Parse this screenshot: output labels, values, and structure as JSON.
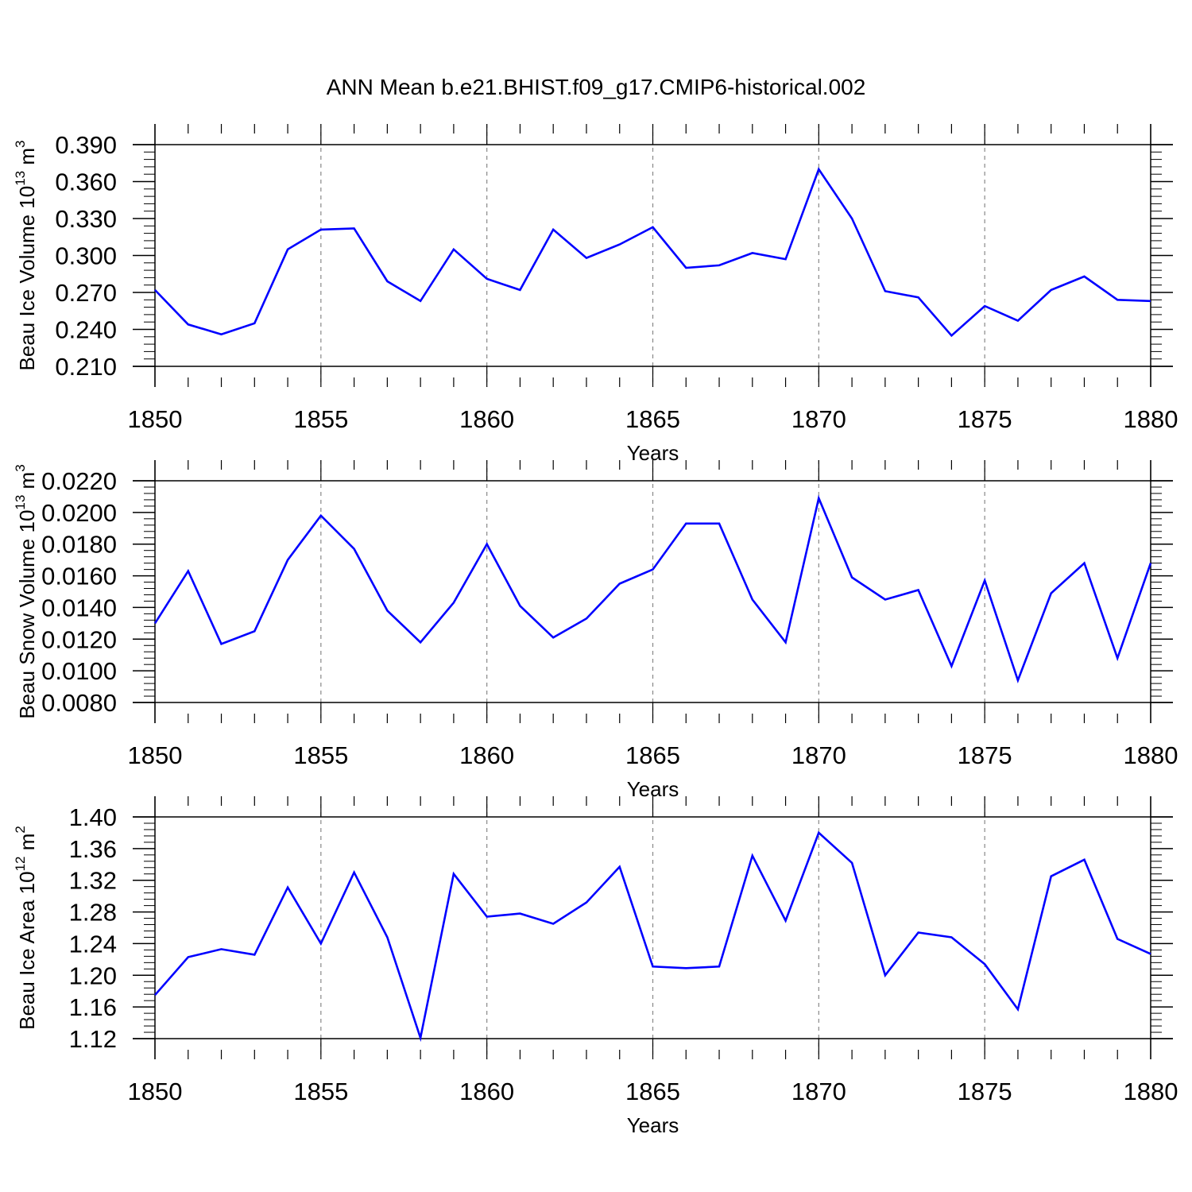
{
  "figure": {
    "title": "ANN Mean b.e21.BHIST.f09_g17.CMIP6-historical.002",
    "line_color": "#0000ff",
    "grid_color": "#888888"
  },
  "chart_data": [
    {
      "type": "line",
      "xlabel": "Years",
      "ylabel": {
        "text": "Beau Ice Volume 10",
        "sup": "13",
        "unit": " m",
        "unit_sup": "3"
      },
      "xlim": [
        1850,
        1880
      ],
      "ylim": [
        0.21,
        0.39
      ],
      "xticks": [
        "1850",
        "1855",
        "1860",
        "1865",
        "1870",
        "1875",
        "1880"
      ],
      "yticks": [
        "0.210",
        "0.240",
        "0.270",
        "0.300",
        "0.330",
        "0.360",
        "0.390"
      ],
      "x": [
        1850,
        1851,
        1852,
        1853,
        1854,
        1855,
        1856,
        1857,
        1858,
        1859,
        1860,
        1861,
        1862,
        1863,
        1864,
        1865,
        1866,
        1867,
        1868,
        1869,
        1870,
        1871,
        1872,
        1873,
        1874,
        1875,
        1876,
        1877,
        1878,
        1879,
        1880
      ],
      "values": [
        0.272,
        0.244,
        0.236,
        0.245,
        0.305,
        0.321,
        0.322,
        0.279,
        0.263,
        0.305,
        0.281,
        0.272,
        0.321,
        0.298,
        0.309,
        0.323,
        0.29,
        0.292,
        0.302,
        0.297,
        0.37,
        0.33,
        0.271,
        0.266,
        0.235,
        0.259,
        0.247,
        0.272,
        0.283,
        0.264,
        0.263
      ]
    },
    {
      "type": "line",
      "xlabel": "Years",
      "ylabel": {
        "text": "Beau Snow Volume 10",
        "sup": "13",
        "unit": " m",
        "unit_sup": "3"
      },
      "xlim": [
        1850,
        1880
      ],
      "ylim": [
        0.008,
        0.022
      ],
      "xticks": [
        "1850",
        "1855",
        "1860",
        "1865",
        "1870",
        "1875",
        "1880"
      ],
      "yticks": [
        "0.0080",
        "0.0100",
        "0.0120",
        "0.0140",
        "0.0160",
        "0.0180",
        "0.0200",
        "0.0220"
      ],
      "x": [
        1850,
        1851,
        1852,
        1853,
        1854,
        1855,
        1856,
        1857,
        1858,
        1859,
        1860,
        1861,
        1862,
        1863,
        1864,
        1865,
        1866,
        1867,
        1868,
        1869,
        1870,
        1871,
        1872,
        1873,
        1874,
        1875,
        1876,
        1877,
        1878,
        1879,
        1880
      ],
      "values": [
        0.013,
        0.0163,
        0.0117,
        0.0125,
        0.017,
        0.0198,
        0.0177,
        0.0138,
        0.0118,
        0.0143,
        0.018,
        0.0141,
        0.0121,
        0.0133,
        0.0155,
        0.0164,
        0.0193,
        0.0193,
        0.0145,
        0.0118,
        0.0209,
        0.0159,
        0.0145,
        0.0151,
        0.0103,
        0.0157,
        0.0094,
        0.0149,
        0.0168,
        0.0108,
        0.0168
      ]
    },
    {
      "type": "line",
      "xlabel": "Years",
      "ylabel": {
        "text": "Beau Ice Area 10",
        "sup": "12",
        "unit": " m",
        "unit_sup": "2"
      },
      "xlim": [
        1850,
        1880
      ],
      "ylim": [
        1.12,
        1.4
      ],
      "xticks": [
        "1850",
        "1855",
        "1860",
        "1865",
        "1870",
        "1875",
        "1880"
      ],
      "yticks": [
        "1.12",
        "1.16",
        "1.20",
        "1.24",
        "1.28",
        "1.32",
        "1.36",
        "1.40"
      ],
      "x": [
        1850,
        1851,
        1852,
        1853,
        1854,
        1855,
        1856,
        1857,
        1858,
        1859,
        1860,
        1861,
        1862,
        1863,
        1864,
        1865,
        1866,
        1867,
        1868,
        1869,
        1870,
        1871,
        1872,
        1873,
        1874,
        1875,
        1876,
        1877,
        1878,
        1879,
        1880
      ],
      "values": [
        1.175,
        1.223,
        1.233,
        1.226,
        1.311,
        1.24,
        1.33,
        1.248,
        1.121,
        1.328,
        1.274,
        1.278,
        1.265,
        1.292,
        1.337,
        1.211,
        1.209,
        1.211,
        1.351,
        1.269,
        1.38,
        1.342,
        1.2,
        1.254,
        1.248,
        1.214,
        1.157,
        1.325,
        1.346,
        1.246,
        1.227
      ]
    }
  ]
}
